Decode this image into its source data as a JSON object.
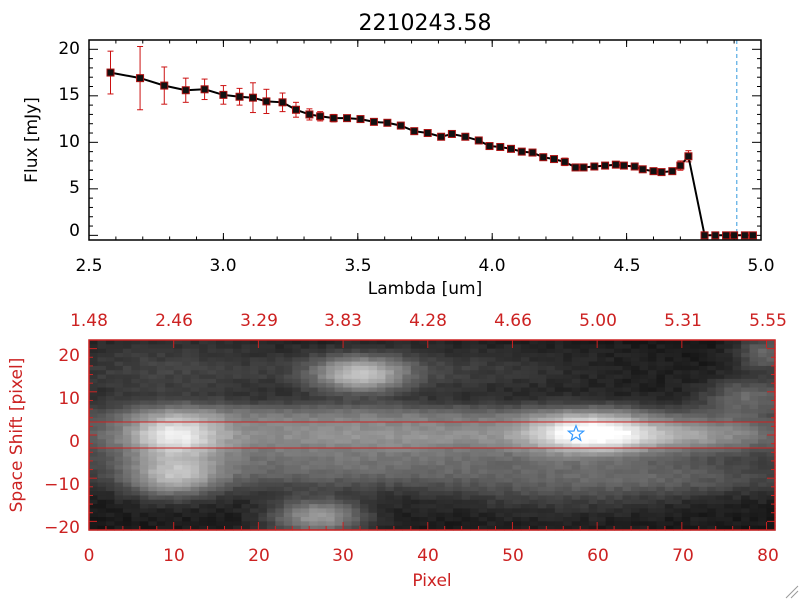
{
  "top_chart": {
    "title": "2210243.58",
    "xlabel": "Lambda [um]",
    "ylabel": "Flux [mJy]",
    "x_ticks": [
      "2.5",
      "3.0",
      "3.5",
      "4.0",
      "4.5",
      "5.0"
    ],
    "y_ticks": [
      "0",
      "5",
      "10",
      "15",
      "20"
    ]
  },
  "bottom_chart": {
    "xlabel": "Pixel",
    "ylabel": "Space Shift [pixel]",
    "x_ticks": [
      "0",
      "10",
      "20",
      "30",
      "40",
      "50",
      "60",
      "70",
      "80"
    ],
    "y_ticks": [
      "−20",
      "−10",
      "0",
      "10",
      "20"
    ],
    "top_ticks": [
      "1.48",
      "2.46",
      "3.29",
      "3.83",
      "4.28",
      "4.66",
      "5.00",
      "5.31",
      "5.55"
    ]
  },
  "colors": {
    "axis_red": "#cc2222",
    "line": "#000000",
    "errorbar": "#cc1111",
    "marker_border": "#aa1111",
    "cutoff_line": "#3399dd",
    "star": "#3399ff"
  },
  "chart_data": [
    {
      "type": "line",
      "title": "2210243.58",
      "xlabel": "Lambda [um]",
      "ylabel": "Flux [mJy]",
      "xlim": [
        2.5,
        5.0
      ],
      "ylim": [
        -0.5,
        21
      ],
      "cutoff_x": 4.91,
      "series": [
        {
          "name": "Flux",
          "x": [
            2.58,
            2.69,
            2.78,
            2.86,
            2.93,
            3.0,
            3.06,
            3.11,
            3.16,
            3.22,
            3.27,
            3.32,
            3.36,
            3.41,
            3.46,
            3.51,
            3.56,
            3.61,
            3.66,
            3.71,
            3.76,
            3.81,
            3.85,
            3.9,
            3.95,
            3.99,
            4.03,
            4.07,
            4.11,
            4.15,
            4.19,
            4.23,
            4.27,
            4.31,
            4.34,
            4.38,
            4.42,
            4.46,
            4.49,
            4.53,
            4.56,
            4.6,
            4.63,
            4.67,
            4.7,
            4.73,
            4.79,
            4.83,
            4.87,
            4.9,
            4.94,
            4.97
          ],
          "y": [
            17.5,
            16.9,
            16.1,
            15.6,
            15.7,
            15.1,
            14.9,
            14.8,
            14.4,
            14.3,
            13.5,
            13.0,
            12.8,
            12.6,
            12.6,
            12.5,
            12.2,
            12.1,
            11.8,
            11.2,
            11.0,
            10.6,
            10.9,
            10.6,
            10.2,
            9.6,
            9.5,
            9.3,
            9.0,
            8.9,
            8.4,
            8.2,
            7.9,
            7.3,
            7.3,
            7.4,
            7.5,
            7.6,
            7.5,
            7.4,
            7.1,
            6.9,
            6.8,
            6.9,
            7.5,
            8.5,
            0.0,
            0.0,
            0.0,
            0.0,
            0.0,
            0.0
          ],
          "err": [
            2.3,
            3.4,
            2.0,
            1.3,
            1.1,
            1.0,
            0.9,
            1.6,
            1.3,
            1.0,
            0.8,
            0.6,
            0.5,
            0.4,
            0.3,
            0.3,
            0.3,
            0.3,
            0.3,
            0.3,
            0.3,
            0.3,
            0.3,
            0.3,
            0.3,
            0.3,
            0.3,
            0.3,
            0.3,
            0.3,
            0.3,
            0.3,
            0.4,
            0.3,
            0.3,
            0.3,
            0.3,
            0.3,
            0.3,
            0.3,
            0.3,
            0.3,
            0.3,
            0.3,
            0.5,
            0.6,
            0.3,
            0.3,
            0.3,
            0.3,
            0.3,
            0.3
          ]
        }
      ]
    },
    {
      "type": "heatmap",
      "xlabel": "Pixel",
      "ylabel": "Space Shift [pixel]",
      "xlim": [
        0,
        81
      ],
      "ylim": [
        -22,
        22
      ],
      "secondary_x_label_values": [
        1.48,
        2.46,
        3.29,
        3.83,
        4.28,
        4.66,
        5.0,
        5.31,
        5.55
      ],
      "extraction_window": [
        -3,
        3
      ],
      "star_marker": {
        "x": 57.5,
        "y": 0.3
      },
      "blobs": [
        {
          "x": 35,
          "y": 0,
          "sx": 30,
          "sy": 3.5,
          "amp": 0.45
        },
        {
          "x": 10,
          "y": 0,
          "sx": 4,
          "sy": 4,
          "amp": 0.5
        },
        {
          "x": 59,
          "y": 0.5,
          "sx": 5,
          "sy": 3.5,
          "amp": 0.55
        },
        {
          "x": 71,
          "y": 0,
          "sx": 9,
          "sy": 3,
          "amp": 0.3
        },
        {
          "x": 30,
          "y": -8,
          "sx": 22,
          "sy": 3.5,
          "amp": 0.3
        },
        {
          "x": 10,
          "y": -10,
          "sx": 4,
          "sy": 3.5,
          "amp": 0.45
        },
        {
          "x": 27,
          "y": -19,
          "sx": 4,
          "sy": 3,
          "amp": 0.5
        },
        {
          "x": 32,
          "y": 14,
          "sx": 4,
          "sy": 3,
          "amp": 0.55
        },
        {
          "x": 40,
          "y": 15,
          "sx": 14,
          "sy": 4,
          "amp": 0.15
        },
        {
          "x": 8,
          "y": 15,
          "sx": 10,
          "sy": 6,
          "amp": 0.15
        },
        {
          "x": 78,
          "y": 9,
          "sx": 4,
          "sy": 3,
          "amp": 0.3
        },
        {
          "x": 80,
          "y": 19,
          "sx": 2.5,
          "sy": 3,
          "amp": 0.3
        },
        {
          "x": 70,
          "y": -10,
          "sx": 12,
          "sy": 3,
          "amp": 0.2
        },
        {
          "x": 48,
          "y": 5,
          "sx": 18,
          "sy": 2,
          "amp": 0.12
        },
        {
          "x": 20,
          "y": 5,
          "sx": 15,
          "sy": 2,
          "amp": 0.15
        },
        {
          "x": 55,
          "y": -14,
          "sx": 10,
          "sy": 4,
          "amp": 0.12
        }
      ]
    }
  ]
}
